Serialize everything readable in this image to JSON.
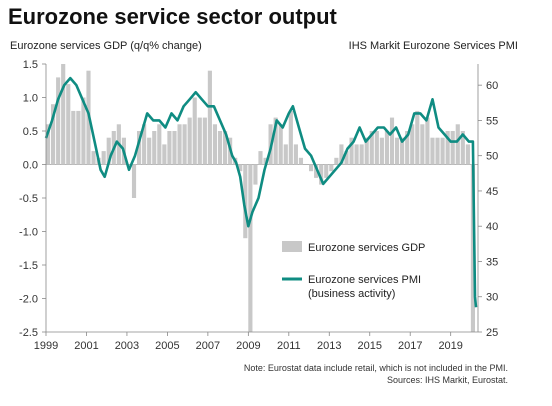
{
  "title": "Eurozone service sector output",
  "left_label": "Eurozone services GDP (q/q% change)",
  "right_label": "IHS Markit Eurozone Services PMI",
  "note": "Note: Eurostat data include retail, which is not included in the PMI.",
  "sources": "Sources: IHS Markit, Eurostat.",
  "colors": {
    "gdp": "#c8c8c8",
    "pmi": "#0f8c82"
  },
  "chart_data": {
    "type": "bar+line",
    "x_tick_labels": [
      "1999",
      "2001",
      "2003",
      "2005",
      "2007",
      "2009",
      "2011",
      "2013",
      "2015",
      "2017",
      "2019"
    ],
    "y_left": {
      "min": -2.5,
      "max": 1.5,
      "ticks": [
        1.5,
        1.0,
        0.5,
        0.0,
        -0.5,
        -1.0,
        -1.5,
        -2.0,
        -2.5
      ],
      "tick_labels": [
        "1.5",
        "1.0",
        "0.5",
        "0.0",
        "-0.5",
        "-1.0",
        "-1.5",
        "-2.0",
        "-2.5"
      ]
    },
    "y_right": {
      "min": 25,
      "max": 63,
      "ticks": [
        60,
        55,
        50,
        45,
        40,
        35,
        30,
        25
      ],
      "tick_labels": [
        "60",
        "55",
        "50",
        "45",
        "40",
        "35",
        "30",
        "25"
      ]
    },
    "legend": [
      {
        "name": "Eurozone services GDP",
        "kind": "bar"
      },
      {
        "name": "Eurozone services PMI",
        "name2": "(business activity)",
        "kind": "line"
      }
    ],
    "gdp_series": {
      "name": "Eurozone services GDP",
      "t": [
        1999.1,
        1999.35,
        1999.6,
        1999.85,
        2000.1,
        2000.35,
        2000.6,
        2000.85,
        2001.1,
        2001.35,
        2001.6,
        2001.85,
        2002.1,
        2002.35,
        2002.6,
        2002.85,
        2003.1,
        2003.35,
        2003.6,
        2003.85,
        2004.1,
        2004.35,
        2004.6,
        2004.85,
        2005.1,
        2005.35,
        2005.6,
        2005.85,
        2006.1,
        2006.35,
        2006.6,
        2006.85,
        2007.1,
        2007.35,
        2007.6,
        2007.85,
        2008.1,
        2008.35,
        2008.6,
        2008.85,
        2009.1,
        2009.35,
        2009.6,
        2009.85,
        2010.1,
        2010.35,
        2010.6,
        2010.85,
        2011.1,
        2011.35,
        2011.6,
        2011.85,
        2012.1,
        2012.35,
        2012.6,
        2012.85,
        2013.1,
        2013.35,
        2013.6,
        2013.85,
        2014.1,
        2014.35,
        2014.6,
        2014.85,
        2015.1,
        2015.35,
        2015.6,
        2015.85,
        2016.1,
        2016.35,
        2016.6,
        2016.85,
        2017.1,
        2017.35,
        2017.6,
        2017.85,
        2018.1,
        2018.35,
        2018.6,
        2018.85,
        2019.1,
        2019.35,
        2019.6,
        2019.85,
        2020.1
      ],
      "values": [
        0.6,
        0.9,
        1.3,
        1.5,
        1.2,
        0.8,
        0.8,
        1.0,
        1.4,
        0.2,
        0.1,
        0.2,
        0.4,
        0.5,
        0.6,
        0.4,
        0.0,
        -0.5,
        0.5,
        0.6,
        0.4,
        0.5,
        0.6,
        0.3,
        0.5,
        0.5,
        0.6,
        0.6,
        0.7,
        1.0,
        0.7,
        0.7,
        1.4,
        0.6,
        0.5,
        0.5,
        0.4,
        0.1,
        -0.1,
        -1.1,
        -2.5,
        -0.3,
        0.2,
        0.1,
        0.6,
        0.7,
        0.6,
        0.3,
        0.8,
        0.3,
        0.1,
        0.0,
        -0.1,
        -0.2,
        -0.3,
        -0.2,
        -0.1,
        0.1,
        0.3,
        0.2,
        0.4,
        0.3,
        0.3,
        0.4,
        0.5,
        0.5,
        0.4,
        0.5,
        0.7,
        0.4,
        0.4,
        0.5,
        0.6,
        0.8,
        0.6,
        0.7,
        0.4,
        0.4,
        0.4,
        0.5,
        0.5,
        0.6,
        0.5,
        0.3,
        -3.8
      ]
    },
    "pmi_series": {
      "name": "Eurozone services PMI",
      "t": [
        1999.0,
        1999.3,
        1999.6,
        1999.9,
        2000.2,
        2000.5,
        2000.8,
        2001.1,
        2001.4,
        2001.7,
        2001.9,
        2002.2,
        2002.5,
        2002.8,
        2003.1,
        2003.4,
        2003.7,
        2004.0,
        2004.3,
        2004.6,
        2004.9,
        2005.2,
        2005.5,
        2005.8,
        2006.1,
        2006.4,
        2006.7,
        2007.0,
        2007.3,
        2007.6,
        2007.9,
        2008.2,
        2008.4,
        2008.6,
        2008.8,
        2009.0,
        2009.2,
        2009.5,
        2009.8,
        2010.1,
        2010.4,
        2010.7,
        2011.0,
        2011.2,
        2011.5,
        2011.8,
        2012.1,
        2012.4,
        2012.7,
        2013.0,
        2013.3,
        2013.6,
        2013.9,
        2014.2,
        2014.5,
        2014.8,
        2015.1,
        2015.4,
        2015.7,
        2016.0,
        2016.3,
        2016.6,
        2016.9,
        2017.2,
        2017.5,
        2017.8,
        2018.1,
        2018.4,
        2018.7,
        2019.0,
        2019.3,
        2019.6,
        2019.9,
        2020.0,
        2020.1,
        2020.2,
        2020.25
      ],
      "values": [
        52.5,
        55,
        58,
        60,
        61,
        60,
        58,
        56,
        52,
        48,
        47,
        50,
        52,
        51,
        48,
        50,
        53,
        56,
        55,
        55,
        54,
        56,
        55,
        57,
        58,
        59,
        58,
        57,
        57,
        55,
        53,
        50,
        49,
        47,
        43,
        40,
        42,
        44,
        48,
        51,
        55,
        54,
        56,
        57,
        54,
        51,
        50,
        48,
        46,
        47,
        48,
        49,
        51,
        52,
        54,
        52,
        53,
        54,
        54,
        53,
        54,
        52,
        53,
        56,
        56,
        55,
        58,
        54,
        53,
        52,
        52,
        53,
        52,
        52,
        52,
        30,
        28.5
      ]
    }
  }
}
